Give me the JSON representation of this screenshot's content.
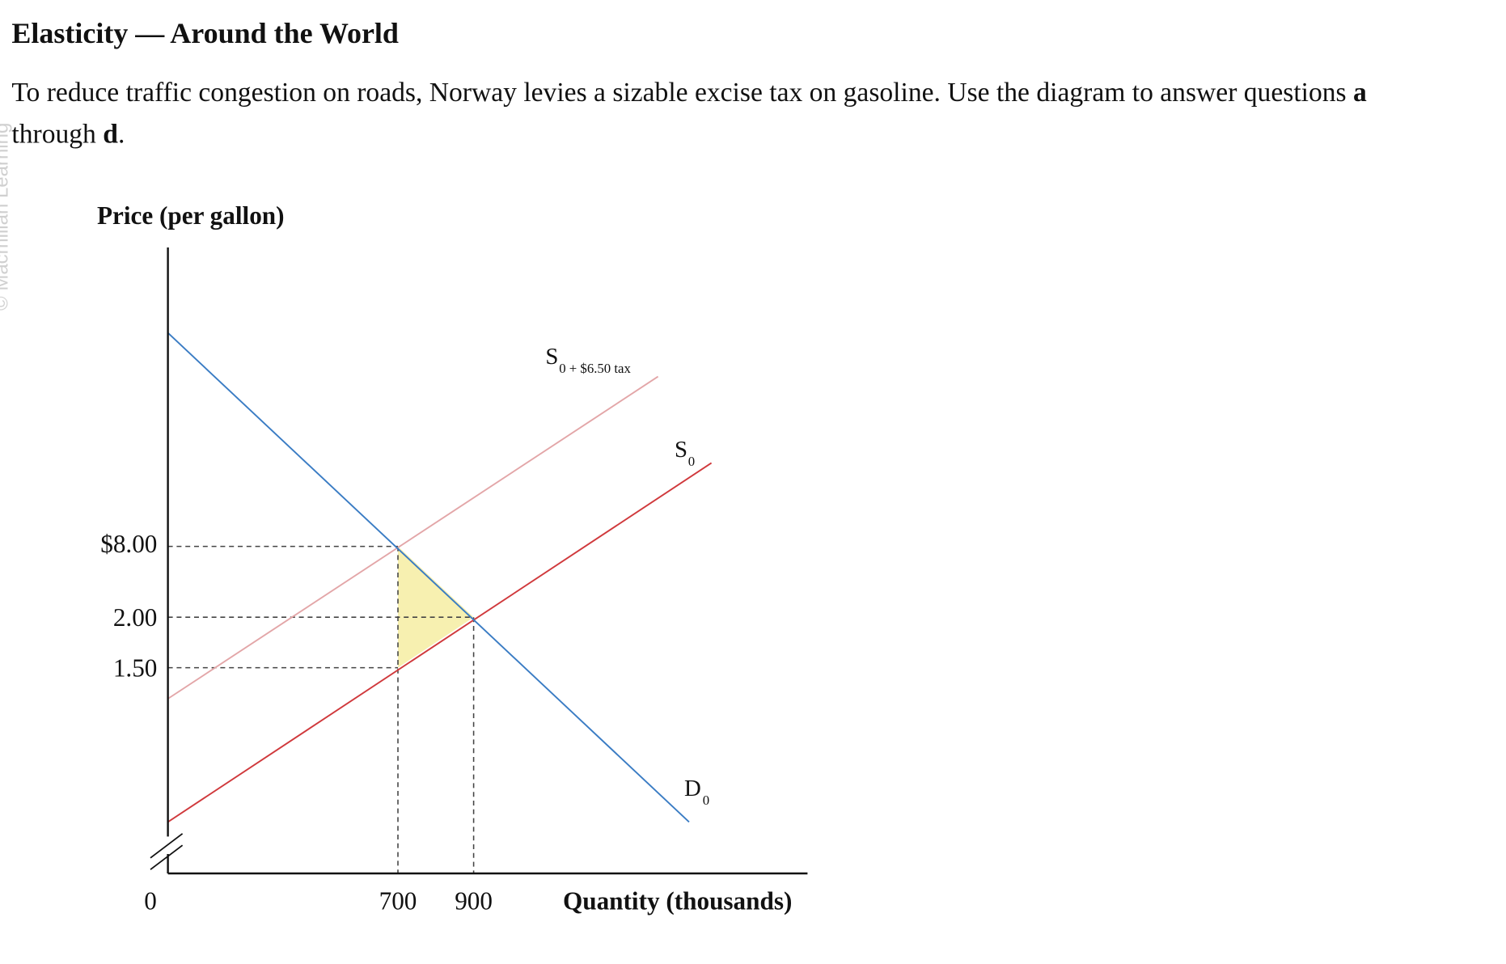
{
  "header": {
    "title": "Elasticity — Around the World"
  },
  "prompt": {
    "parts": [
      "To reduce traffic congestion on roads, Norway levies a sizable excise tax on gasoline. Use the diagram to answer questions ",
      "a",
      "through ",
      "d",
      "."
    ]
  },
  "watermark": "© Macmillan Learning",
  "diagram": {
    "y_axis_label": "Price (per gallon)",
    "x_axis_label": "Quantity (thousands)",
    "y_tick_labels": [
      "$8.00",
      "2.00",
      "1.50"
    ],
    "x_tick_labels": [
      "0",
      "700",
      "900"
    ],
    "curves": [
      {
        "label": "S",
        "subscript": "0 + $6.50 tax"
      },
      {
        "label": "S",
        "subscript": "0"
      },
      {
        "label": "D",
        "subscript": "0"
      }
    ]
  }
}
